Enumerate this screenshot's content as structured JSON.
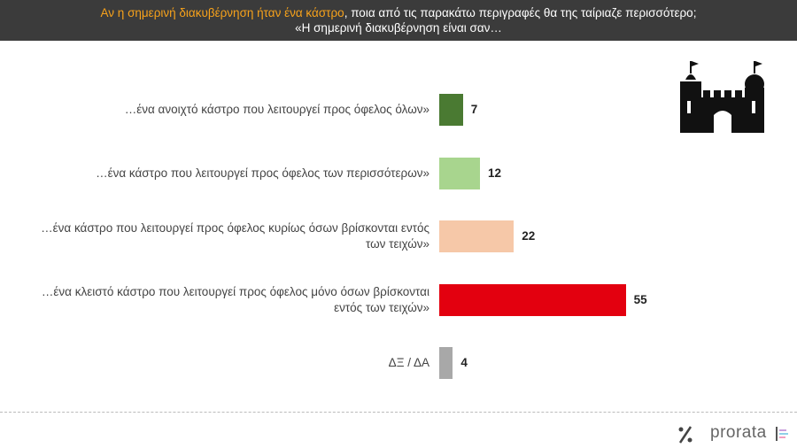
{
  "chart_data": {
    "type": "bar",
    "orientation": "horizontal",
    "title_highlight": "Αν η σημερινή διακυβέρνηση ήταν ένα κάστρο",
    "title": ", ποια από τις παρακάτω περιγραφές θα της ταίριαζε περισσότερο;",
    "subtitle": "«Η σημερινή διακυβέρνηση είναι σαν…",
    "categories": [
      "…ένα ανοιχτό κάστρο που λειτουργεί προς όφελος όλων»",
      "…ένα κάστρο που λειτουργεί προς όφελος των περισσότερων»",
      "…ένα κάστρο που λειτουργεί προς όφελος κυρίως όσων βρίσκονται εντός των τειχών»",
      "…ένα κλειστό κάστρο που λειτουργεί προς όφελος μόνο όσων βρίσκονται εντός των τειχών»",
      "ΔΞ / ΔΑ"
    ],
    "values": [
      7,
      12,
      22,
      55,
      4
    ],
    "colors": [
      "#4a7a32",
      "#a8d58e",
      "#f6c8a8",
      "#e3000f",
      "#a8a8a8"
    ]
  },
  "logo_text": "prorata"
}
